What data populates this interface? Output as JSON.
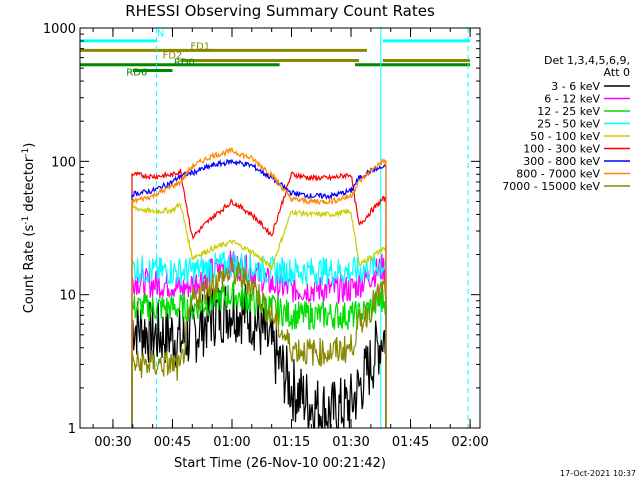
{
  "chart_data": {
    "type": "line",
    "title": "RHESSI Observing Summary Count Rates",
    "xlabel": "Start Time (26-Nov-10 00:21:42)",
    "ylabel_main": "Count Rate (s",
    "ylabel_sup1": "-1",
    "ylabel_mid": " detector",
    "ylabel_sup2": "-1",
    "ylabel_end": ")",
    "y_scale": "log",
    "ylim": [
      1,
      1000
    ],
    "y_ticks": [
      1,
      10,
      100,
      1000
    ],
    "y_tick_labels": [
      "1",
      "10",
      "100",
      "1000"
    ],
    "x_unit": "minutes after 00:00 UT",
    "xlim": [
      21.7,
      122.5
    ],
    "x_ticks": [
      30,
      45,
      60,
      75,
      90,
      105,
      120
    ],
    "x_tick_labels": [
      "00:30",
      "00:45",
      "01:00",
      "01:15",
      "01:30",
      "01:45",
      "02:00"
    ],
    "legend_header": [
      "Det 1,3,4,5,6,9,",
      "Att 0"
    ],
    "legend_placement": "right",
    "series": [
      {
        "name": "3 - 6 keV",
        "color": "#000000",
        "x": [
          35,
          40,
          45,
          47,
          50,
          55,
          60,
          65,
          70,
          75,
          80,
          85,
          90,
          92,
          95,
          98
        ],
        "y": [
          6,
          5,
          5,
          4.5,
          5,
          7,
          8,
          7,
          4,
          2,
          1.5,
          1.3,
          1.5,
          2,
          3,
          5
        ]
      },
      {
        "name": "6 - 12 keV",
        "color": "#ff00ff",
        "x": [
          35,
          40,
          45,
          47,
          50,
          55,
          60,
          65,
          70,
          75,
          80,
          85,
          90,
          92,
          95,
          98
        ],
        "y": [
          13,
          12,
          12,
          11,
          12,
          15,
          17,
          15,
          12,
          11,
          11,
          11,
          11,
          12,
          14,
          16
        ]
      },
      {
        "name": "12 - 25 keV",
        "color": "#00dd00",
        "x": [
          35,
          40,
          45,
          47,
          50,
          55,
          60,
          65,
          70,
          75,
          80,
          85,
          90,
          92,
          95,
          98
        ],
        "y": [
          8,
          8,
          8,
          8,
          8,
          9,
          10,
          9,
          8,
          7,
          7,
          7,
          7,
          7,
          8,
          9
        ]
      },
      {
        "name": "25 - 50 keV",
        "color": "#00ffff",
        "x": [
          35,
          40,
          45,
          47,
          50,
          55,
          60,
          65,
          70,
          75,
          80,
          85,
          90,
          92,
          95,
          98
        ],
        "y": [
          16,
          15,
          15,
          15,
          15,
          16,
          17,
          16,
          15,
          15,
          15,
          15,
          15,
          15,
          16,
          17
        ]
      },
      {
        "name": "50 - 100 keV",
        "color": "#cccc00",
        "x": [
          35,
          40,
          45,
          47,
          50,
          55,
          60,
          65,
          70,
          75,
          80,
          85,
          90,
          92,
          95,
          98
        ],
        "y": [
          45,
          42,
          43,
          48,
          19,
          22,
          25,
          21,
          16,
          42,
          40,
          40,
          42,
          17,
          19,
          22
        ]
      },
      {
        "name": "100 - 300 keV",
        "color": "#ff0000",
        "x": [
          35,
          40,
          45,
          47,
          50,
          55,
          60,
          65,
          70,
          75,
          80,
          85,
          90,
          92,
          95,
          98
        ],
        "y": [
          80,
          77,
          79,
          85,
          27,
          38,
          50,
          40,
          28,
          80,
          75,
          75,
          80,
          33,
          42,
          52
        ]
      },
      {
        "name": "300 - 800 keV",
        "color": "#0000ff",
        "x": [
          35,
          40,
          45,
          47,
          50,
          55,
          60,
          65,
          70,
          75,
          80,
          85,
          90,
          92,
          95,
          98
        ],
        "y": [
          57,
          60,
          70,
          78,
          82,
          93,
          100,
          93,
          75,
          58,
          55,
          55,
          60,
          75,
          85,
          90
        ]
      },
      {
        "name": "800 - 7000 keV",
        "color": "#ff8800",
        "x": [
          35,
          40,
          45,
          47,
          50,
          55,
          60,
          65,
          70,
          75,
          80,
          85,
          90,
          92,
          95,
          98
        ],
        "y": [
          50,
          55,
          65,
          70,
          92,
          110,
          120,
          105,
          80,
          52,
          50,
          50,
          55,
          70,
          85,
          100
        ]
      },
      {
        "name": "7000 - 15000 keV",
        "color": "#888800",
        "x": [
          35,
          40,
          45,
          47,
          50,
          55,
          60,
          65,
          70,
          75,
          80,
          85,
          90,
          92,
          95,
          98
        ],
        "y": [
          3,
          3,
          3,
          2.7,
          9,
          12,
          15,
          12,
          7,
          4,
          3.7,
          3.7,
          4,
          6,
          8,
          11
        ]
      }
    ],
    "data_start_x": 34.8,
    "data_end_x": 98.8,
    "flag_bars": [
      {
        "label": "N",
        "color": "#00ffff",
        "y": 800,
        "segments": [
          [
            21.7,
            41
          ],
          [
            98,
            120
          ]
        ]
      },
      {
        "label": "FD1",
        "color": "#888800",
        "y": 680,
        "segments": [
          [
            21.7,
            94
          ]
        ]
      },
      {
        "label": "FD2",
        "color": "#888800",
        "y": 570,
        "segments": [
          [
            47,
            92
          ],
          [
            98,
            120
          ]
        ]
      },
      {
        "label": "RD0",
        "color": "#008800",
        "y": 530,
        "segments": [
          [
            21.7,
            72
          ],
          [
            91,
            120
          ]
        ]
      },
      {
        "label": "RD6",
        "color": "#008800",
        "y": 480,
        "segments": [
          [
            35,
            45
          ]
        ]
      }
    ],
    "flag_labels": [
      {
        "text": "N",
        "color": "#00ffff",
        "x": 42,
        "y": 860
      },
      {
        "text": "FD1",
        "color": "#888800",
        "x": 52,
        "y": 690
      },
      {
        "text": "FD2",
        "color": "#888800",
        "x": 45,
        "y": 590
      },
      {
        "text": "RD0",
        "color": "#008800",
        "x": 48,
        "y": 525
      },
      {
        "text": "RD6",
        "color": "#008800",
        "x": 36,
        "y": 440
      }
    ],
    "night_lines": [
      {
        "color": "#00ffff",
        "x": 21.7,
        "style": "solid"
      },
      {
        "color": "#00ffff",
        "x": 41,
        "style": "dashed"
      },
      {
        "color": "#00ffff",
        "x": 97.5,
        "style": "solid"
      },
      {
        "color": "#00ffff",
        "x": 119.5,
        "style": "dashed"
      }
    ],
    "timestamp": "17-Oct-2021 10:37"
  }
}
